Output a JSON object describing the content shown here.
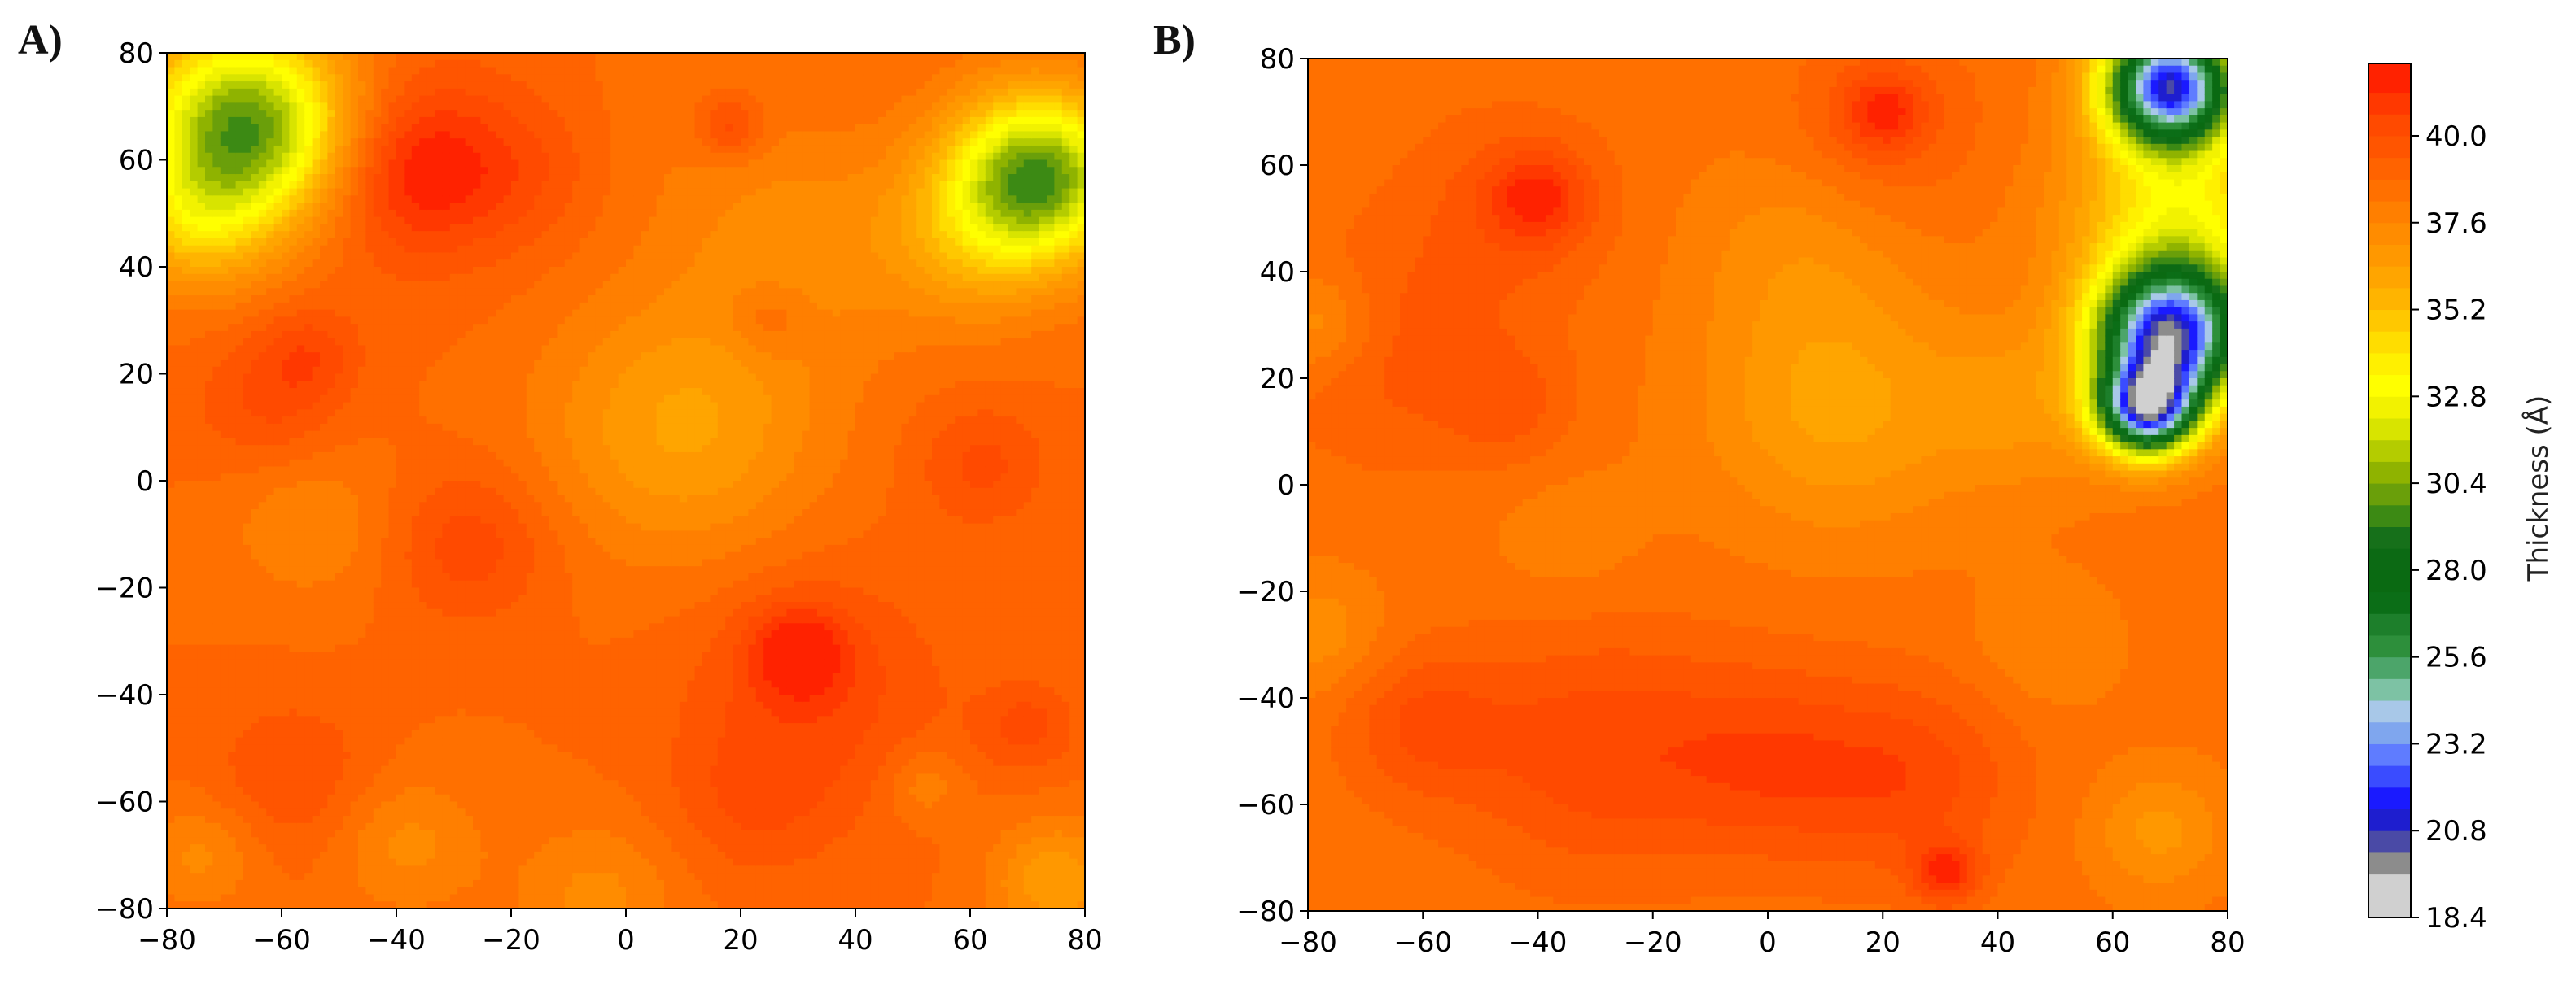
{
  "panels": [
    {
      "letter": "A)"
    },
    {
      "letter": "B)"
    }
  ],
  "colorbar": {
    "label": "Thickness (Å)",
    "tick_labels": [
      "18.4",
      "20.8",
      "23.2",
      "25.6",
      "28.0",
      "30.4",
      "32.8",
      "35.2",
      "37.6",
      "40.0"
    ],
    "tick_values": [
      18.4,
      20.8,
      23.2,
      25.6,
      28.0,
      30.4,
      32.8,
      35.2,
      37.6,
      40.0
    ],
    "range": [
      18.4,
      42.0
    ],
    "bands": [
      {
        "from": 18.4,
        "to": 19.6,
        "color": "#d0d0d0"
      },
      {
        "from": 19.6,
        "to": 20.2,
        "color": "#8c8c8c"
      },
      {
        "from": 20.2,
        "to": 20.8,
        "color": "#4a4aa6"
      },
      {
        "from": 20.8,
        "to": 21.4,
        "color": "#1e1ecf"
      },
      {
        "from": 21.4,
        "to": 22.0,
        "color": "#1a1aff"
      },
      {
        "from": 22.0,
        "to": 22.6,
        "color": "#3a4cff"
      },
      {
        "from": 22.6,
        "to": 23.2,
        "color": "#5f7cff"
      },
      {
        "from": 23.2,
        "to": 23.8,
        "color": "#7fa6ee"
      },
      {
        "from": 23.8,
        "to": 24.4,
        "color": "#a8c8e8"
      },
      {
        "from": 24.4,
        "to": 25.0,
        "color": "#7dc2a4"
      },
      {
        "from": 25.0,
        "to": 25.6,
        "color": "#4ca56a"
      },
      {
        "from": 25.6,
        "to": 26.2,
        "color": "#2d8f3b"
      },
      {
        "from": 26.2,
        "to": 26.8,
        "color": "#1d7f2b"
      },
      {
        "from": 26.8,
        "to": 27.4,
        "color": "#0b6e17"
      },
      {
        "from": 27.4,
        "to": 28.0,
        "color": "#0a6a12"
      },
      {
        "from": 28.0,
        "to": 28.6,
        "color": "#0c6a14"
      },
      {
        "from": 28.6,
        "to": 29.2,
        "color": "#16701a"
      },
      {
        "from": 29.2,
        "to": 29.8,
        "color": "#3c8a14"
      },
      {
        "from": 29.8,
        "to": 30.4,
        "color": "#6a9f0a"
      },
      {
        "from": 30.4,
        "to": 31.0,
        "color": "#8fb300"
      },
      {
        "from": 31.0,
        "to": 31.6,
        "color": "#b4cc00"
      },
      {
        "from": 31.6,
        "to": 32.2,
        "color": "#d8e400"
      },
      {
        "from": 32.2,
        "to": 32.8,
        "color": "#f2f200"
      },
      {
        "from": 32.8,
        "to": 33.4,
        "color": "#ffff00"
      },
      {
        "from": 33.4,
        "to": 34.0,
        "color": "#fff000"
      },
      {
        "from": 34.0,
        "to": 34.6,
        "color": "#ffdd00"
      },
      {
        "from": 34.6,
        "to": 35.2,
        "color": "#ffc800"
      },
      {
        "from": 35.2,
        "to": 35.8,
        "color": "#ffb400"
      },
      {
        "from": 35.8,
        "to": 36.4,
        "color": "#ffa500"
      },
      {
        "from": 36.4,
        "to": 37.0,
        "color": "#ff9800"
      },
      {
        "from": 37.0,
        "to": 37.6,
        "color": "#ff8c00"
      },
      {
        "from": 37.6,
        "to": 38.2,
        "color": "#ff7f00"
      },
      {
        "from": 38.2,
        "to": 38.8,
        "color": "#ff7000"
      },
      {
        "from": 38.8,
        "to": 39.4,
        "color": "#ff6300"
      },
      {
        "from": 39.4,
        "to": 40.0,
        "color": "#ff5500"
      },
      {
        "from": 40.0,
        "to": 40.6,
        "color": "#ff4a00"
      },
      {
        "from": 40.6,
        "to": 41.2,
        "color": "#ff3800"
      },
      {
        "from": 41.2,
        "to": 42.0,
        "color": "#ff2200"
      }
    ]
  },
  "chart_data": [
    {
      "type": "heatmap",
      "panel": "A)",
      "title": "",
      "xlabel": "",
      "ylabel": "",
      "xlim": [
        -80,
        80
      ],
      "ylim": [
        -80,
        80
      ],
      "xticks": [
        -80,
        -60,
        -40,
        -20,
        0,
        20,
        40,
        60,
        80
      ],
      "yticks": [
        -80,
        -60,
        -40,
        -20,
        0,
        20,
        40,
        60,
        80
      ],
      "x_tick_labels": [
        "−80",
        "−60",
        "−40",
        "−20",
        "0",
        "20",
        "40",
        "60",
        "80"
      ],
      "y_tick_labels": [
        "−80",
        "−60",
        "−40",
        "−20",
        "0",
        "20",
        "40",
        "60",
        "80"
      ],
      "baseline": 38.8,
      "features": [
        {
          "x": -66,
          "y": 66,
          "value": 29.5,
          "spread": 13
        },
        {
          "x": 72,
          "y": 57,
          "value": 30.0,
          "spread": 11
        },
        {
          "x": -37,
          "y": 58,
          "value": 40.8,
          "spread": 10
        },
        {
          "x": -40,
          "y": 60,
          "value": 40.0,
          "spread": 16
        },
        {
          "x": 18,
          "y": 66,
          "value": 40.6,
          "spread": 4
        },
        {
          "x": 5,
          "y": 62,
          "value": 38.5,
          "spread": 14
        },
        {
          "x": -62,
          "y": 15,
          "value": 40.2,
          "spread": 9
        },
        {
          "x": -55,
          "y": 24,
          "value": 40.0,
          "spread": 6
        },
        {
          "x": -27,
          "y": -12,
          "value": 40.4,
          "spread": 10
        },
        {
          "x": 30,
          "y": -32,
          "value": 41.2,
          "spread": 6
        },
        {
          "x": 33,
          "y": -40,
          "value": 40.3,
          "spread": 16
        },
        {
          "x": 22,
          "y": -60,
          "value": 39.8,
          "spread": 10
        },
        {
          "x": 62,
          "y": 3,
          "value": 40.2,
          "spread": 8
        },
        {
          "x": 70,
          "y": -46,
          "value": 40.2,
          "spread": 6
        },
        {
          "x": -58,
          "y": -55,
          "value": 40.0,
          "spread": 10
        },
        {
          "x": -18,
          "y": 58,
          "value": 39.8,
          "spread": 10
        },
        {
          "x": 25,
          "y": 30,
          "value": 40.0,
          "spread": 5
        },
        {
          "x": 10,
          "y": 10,
          "value": 36.3,
          "spread": 17
        },
        {
          "x": 30,
          "y": 45,
          "value": 37.4,
          "spread": 15
        },
        {
          "x": -55,
          "y": -8,
          "value": 37.6,
          "spread": 10
        },
        {
          "x": -38,
          "y": -68,
          "value": 37.4,
          "spread": 9
        },
        {
          "x": -5,
          "y": -78,
          "value": 37.4,
          "spread": 10
        },
        {
          "x": 52,
          "y": -57,
          "value": 37.6,
          "spread": 5
        },
        {
          "x": -74,
          "y": -70,
          "value": 37.4,
          "spread": 7
        },
        {
          "x": 75,
          "y": -75,
          "value": 36.5,
          "spread": 8
        },
        {
          "x": 60,
          "y": 45,
          "value": 36.6,
          "spread": 11
        },
        {
          "x": -75,
          "y": 48,
          "value": 36.0,
          "spread": 9
        }
      ]
    },
    {
      "type": "heatmap",
      "panel": "B)",
      "title": "",
      "xlabel": "",
      "ylabel": "",
      "xlim": [
        -80,
        80
      ],
      "ylim": [
        -80,
        80
      ],
      "xticks": [
        -80,
        -60,
        -40,
        -20,
        0,
        20,
        40,
        60,
        80
      ],
      "yticks": [
        -80,
        -60,
        -40,
        -20,
        0,
        20,
        40,
        60,
        80
      ],
      "x_tick_labels": [
        "−80",
        "−60",
        "−40",
        "−20",
        "0",
        "20",
        "40",
        "60",
        "80"
      ],
      "y_tick_labels": [
        "−80",
        "−60",
        "−40",
        "−20",
        "0",
        "20",
        "40",
        "60",
        "80"
      ],
      "baseline": 38.4,
      "features": [
        {
          "x": 70,
          "y": 75,
          "value": 21.5,
          "spread": 8
        },
        {
          "x": 70,
          "y": 28,
          "value": 21.5,
          "spread": 9
        },
        {
          "x": 66,
          "y": 14,
          "value": 23.5,
          "spread": 6
        },
        {
          "x": 72,
          "y": 50,
          "value": 33.5,
          "spread": 13
        },
        {
          "x": -40,
          "y": 54,
          "value": 40.6,
          "spread": 6
        },
        {
          "x": -45,
          "y": 52,
          "value": 39.6,
          "spread": 13
        },
        {
          "x": 20,
          "y": 70,
          "value": 40.6,
          "spread": 5
        },
        {
          "x": 20,
          "y": 68,
          "value": 39.6,
          "spread": 12
        },
        {
          "x": -30,
          "y": -50,
          "value": 40.4,
          "spread": 16
        },
        {
          "x": 0,
          "y": -52,
          "value": 40.2,
          "spread": 13
        },
        {
          "x": 25,
          "y": -55,
          "value": 40.3,
          "spread": 13
        },
        {
          "x": 31,
          "y": -73,
          "value": 41.0,
          "spread": 4
        },
        {
          "x": -60,
          "y": -45,
          "value": 40.0,
          "spread": 10
        },
        {
          "x": -65,
          "y": 25,
          "value": 39.6,
          "spread": 15
        },
        {
          "x": -45,
          "y": 15,
          "value": 39.5,
          "spread": 8
        },
        {
          "x": 12,
          "y": 15,
          "value": 36.2,
          "spread": 16
        },
        {
          "x": 5,
          "y": 45,
          "value": 37.4,
          "spread": 13
        },
        {
          "x": 45,
          "y": 15,
          "value": 37.0,
          "spread": 11
        },
        {
          "x": -78,
          "y": 30,
          "value": 36.8,
          "spread": 7
        },
        {
          "x": -78,
          "y": -28,
          "value": 37.2,
          "spread": 8
        },
        {
          "x": 68,
          "y": -65,
          "value": 36.8,
          "spread": 8
        },
        {
          "x": -35,
          "y": -10,
          "value": 37.8,
          "spread": 10
        },
        {
          "x": 48,
          "y": -30,
          "value": 37.6,
          "spread": 9
        }
      ]
    }
  ]
}
